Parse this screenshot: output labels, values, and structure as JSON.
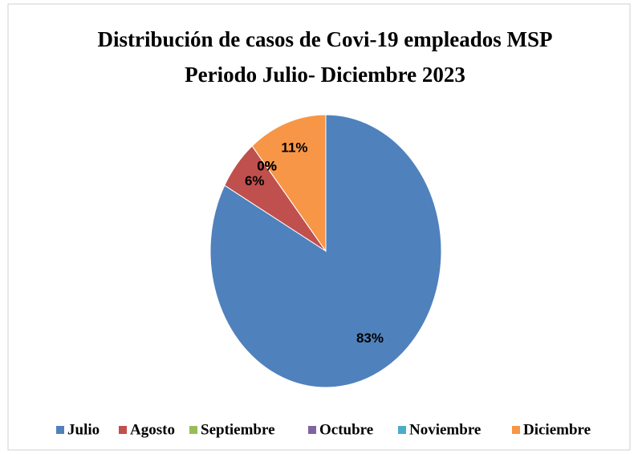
{
  "chart_data": {
    "type": "pie",
    "title": "Distribución de casos de Covi-19 empleados MSP",
    "subtitle": "Periodo Julio- Diciembre 2023",
    "categories": [
      "Julio",
      "Agosto",
      "Septiembre",
      "Octubre",
      "Noviembre",
      "Diciembre"
    ],
    "values": [
      83,
      6,
      0,
      0,
      0,
      11
    ],
    "value_labels": [
      "83%",
      "6%",
      "0%",
      "0%",
      "0%",
      "11%"
    ],
    "colors": [
      "#4f81bd",
      "#c0504d",
      "#9bbb59",
      "#8064a2",
      "#4bacc6",
      "#f79646"
    ],
    "legend": "bottom"
  }
}
